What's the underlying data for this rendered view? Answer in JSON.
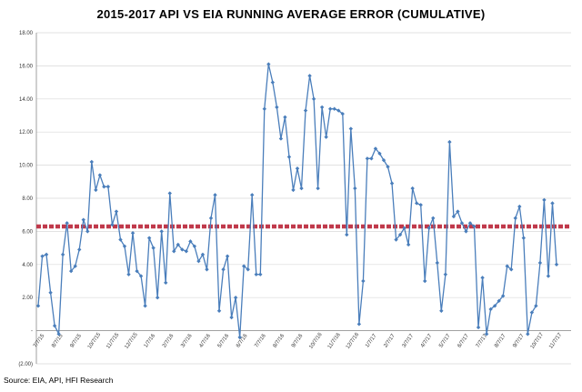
{
  "title": "2015-2017 API VS EIA RUNNING AVERAGE ERROR (CUMULATIVE)",
  "source": "Source: EIA, API, HFI Research",
  "chart_data": {
    "type": "line",
    "title": "2015-2017 API VS EIA RUNNING AVERAGE ERROR (CUMULATIVE)",
    "xlabel": "",
    "ylabel": "",
    "ylim": [
      -2,
      18
    ],
    "grid": "horizontal",
    "ytick_labels": [
      "(2.00)",
      "-",
      "2.00",
      "4.00",
      "6.00",
      "8.00",
      "10.00",
      "12.00",
      "14.00",
      "16.00",
      "18.00"
    ],
    "ytick_values": [
      -2,
      0,
      2,
      4,
      6,
      8,
      10,
      12,
      14,
      16,
      18
    ],
    "xtick_labels": [
      "7/7/15",
      "8/7/15",
      "9/7/15",
      "10/7/15",
      "11/7/15",
      "12/7/15",
      "1/7/16",
      "2/7/16",
      "3/7/16",
      "4/7/16",
      "5/7/16",
      "6/7/16",
      "7/7/16",
      "8/7/16",
      "9/7/16",
      "10/7/16",
      "11/7/16",
      "12/7/16",
      "1/7/17",
      "2/7/17",
      "3/7/17",
      "4/7/17",
      "5/7/17",
      "6/7/17",
      "7/7/17",
      "8/7/17",
      "9/7/17",
      "10/7/17",
      "11/7/17"
    ],
    "series": [
      {
        "color": "#4a7ebb",
        "style": "line-with-diamond-markers",
        "values": [
          1.5,
          4.5,
          4.6,
          2.3,
          0.3,
          -0.2,
          4.6,
          6.5,
          3.6,
          3.9,
          4.9,
          6.7,
          6.0,
          10.2,
          8.5,
          9.4,
          8.7,
          8.7,
          6.4,
          7.2,
          5.5,
          5.1,
          3.4,
          5.9,
          3.6,
          3.3,
          1.5,
          5.6,
          5.0,
          2.0,
          6.0,
          2.9,
          8.3,
          4.8,
          5.2,
          4.9,
          4.8,
          5.4,
          5.1,
          4.2,
          4.6,
          3.7,
          6.8,
          8.2,
          1.2,
          3.7,
          4.5,
          0.8,
          2.0,
          -0.4,
          3.9,
          3.7,
          8.2,
          3.4,
          3.4,
          13.4,
          16.1,
          15.0,
          13.5,
          11.6,
          12.9,
          10.5,
          8.5,
          9.8,
          8.6,
          13.3,
          15.4,
          14.0,
          8.6,
          13.5,
          11.7,
          13.4,
          13.4,
          13.3,
          13.1,
          5.8,
          12.2,
          8.6,
          0.4,
          3.0,
          10.4,
          10.4,
          11.0,
          10.7,
          10.3,
          9.9,
          8.9,
          5.5,
          5.8,
          6.2,
          5.2,
          8.6,
          7.7,
          7.6,
          3.0,
          6.2,
          6.8,
          4.1,
          1.2,
          3.4,
          11.4,
          6.9,
          7.2,
          6.5,
          6.0,
          6.5,
          6.3,
          0.2,
          3.2,
          -0.2,
          1.3,
          1.5,
          1.8,
          2.1,
          3.9,
          3.7,
          6.8,
          7.5,
          5.6,
          -0.2,
          1.1,
          1.5,
          4.1,
          7.9,
          3.3,
          7.7,
          4.0
        ]
      },
      {
        "color": "#c0394b",
        "style": "dashed",
        "values_constant": 6.3
      }
    ]
  }
}
